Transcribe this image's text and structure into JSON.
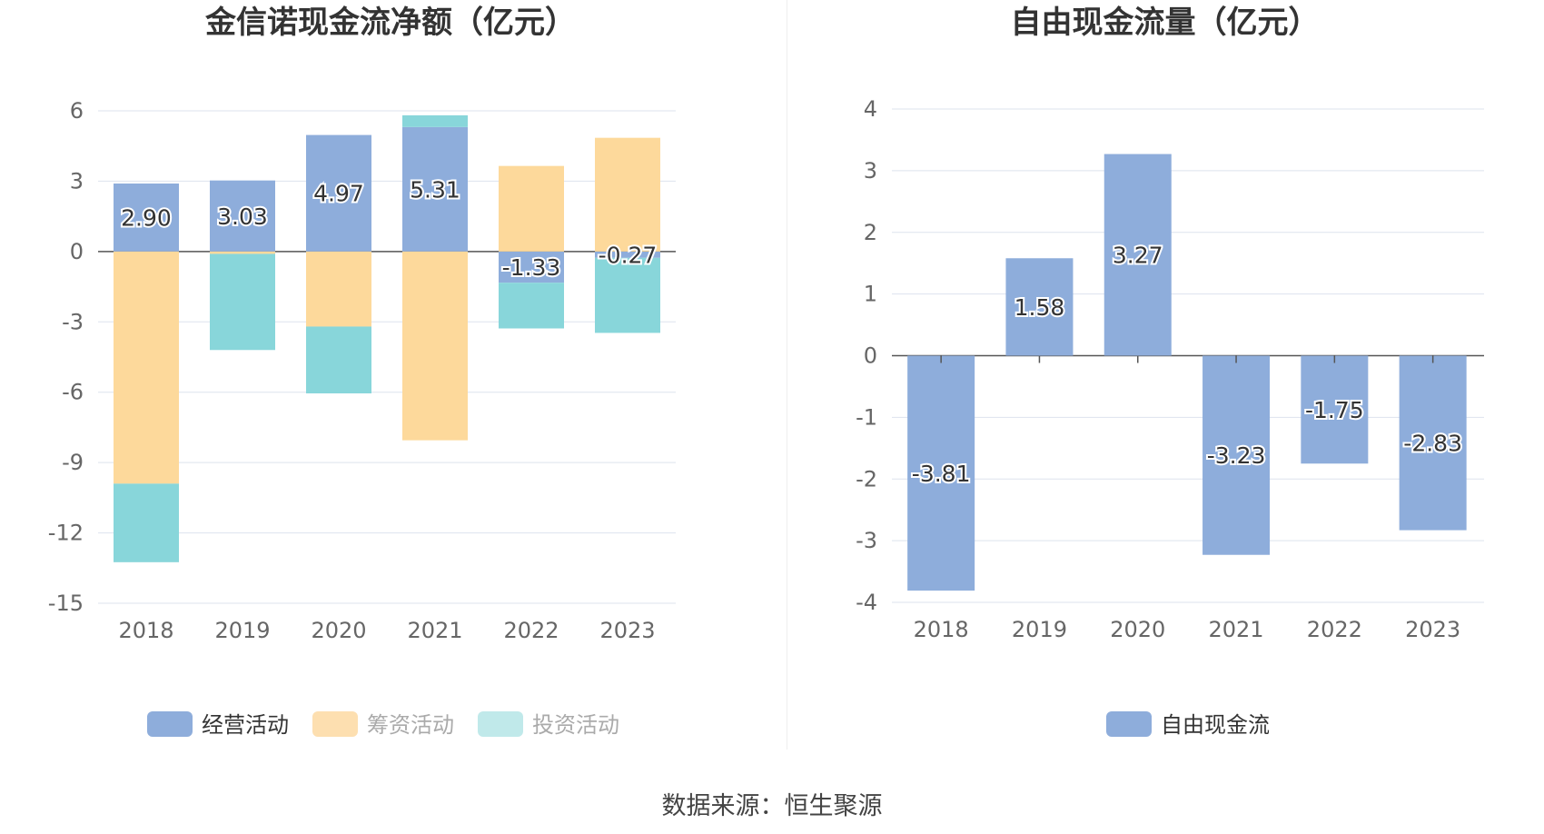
{
  "source_label": "数据来源：恒生聚源",
  "chart_data": [
    {
      "type": "bar",
      "stacked": true,
      "title": "金信诺现金流净额（亿元）",
      "categories": [
        "2018",
        "2019",
        "2020",
        "2021",
        "2022",
        "2023"
      ],
      "ylim": [
        -15,
        6
      ],
      "yticks": [
        6,
        3,
        0,
        -3,
        -6,
        -9,
        -12,
        -15
      ],
      "grid": true,
      "legend_position": "bottom",
      "series": [
        {
          "name": "经营活动",
          "color": "#8eaddb",
          "values": [
            2.9,
            3.03,
            4.97,
            5.31,
            -1.33,
            -0.27
          ],
          "show_labels": true
        },
        {
          "name": "筹资活动",
          "color": "#fdd99b",
          "values": [
            -9.9,
            -0.1,
            -3.2,
            -8.05,
            3.65,
            4.85
          ],
          "show_labels": false
        },
        {
          "name": "投资活动",
          "color": "#88d6da",
          "values": [
            -3.35,
            -4.1,
            -2.85,
            0.5,
            -1.95,
            -3.2
          ],
          "show_labels": false
        }
      ],
      "legend": [
        {
          "name": "经营活动",
          "color": "#8eaddb",
          "dim": false
        },
        {
          "name": "筹资活动",
          "color": "#fddfb0",
          "dim": true
        },
        {
          "name": "投资活动",
          "color": "#c0e9ea",
          "dim": true
        }
      ]
    },
    {
      "type": "bar",
      "title": "自由现金流量（亿元）",
      "categories": [
        "2018",
        "2019",
        "2020",
        "2021",
        "2022",
        "2023"
      ],
      "ylim": [
        -4,
        4
      ],
      "yticks": [
        4,
        3,
        2,
        1,
        0,
        -1,
        -2,
        -3,
        -4
      ],
      "grid": true,
      "legend_position": "bottom",
      "series": [
        {
          "name": "自由现金流",
          "color": "#8eaddb",
          "values": [
            -3.81,
            1.58,
            3.27,
            -3.23,
            -1.75,
            -2.83
          ],
          "show_labels": true
        }
      ],
      "legend": [
        {
          "name": "自由现金流",
          "color": "#8eaddb",
          "dim": false
        }
      ]
    }
  ]
}
